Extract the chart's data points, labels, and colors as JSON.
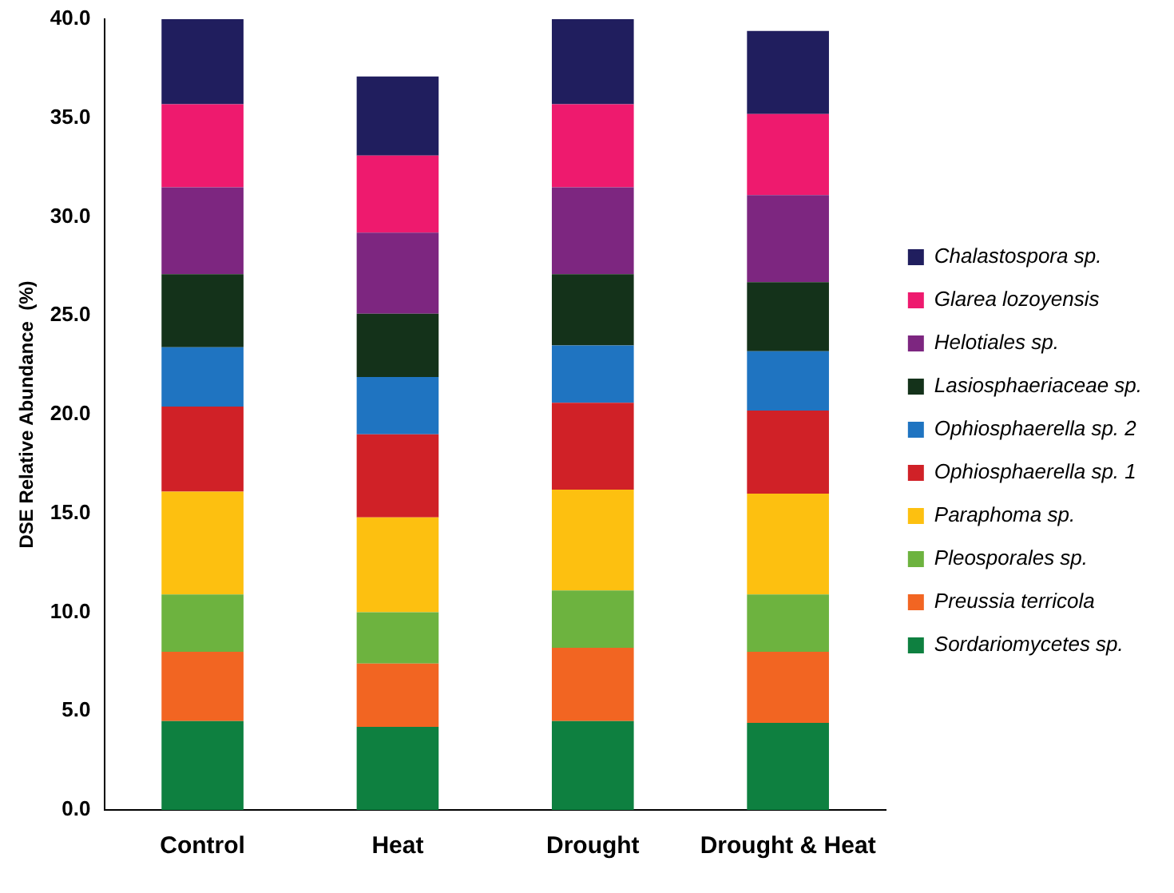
{
  "chart_data": {
    "type": "bar",
    "stacked": true,
    "ylabel": "DSE Relative Abundance  (%)",
    "categories": [
      "Control",
      "Heat",
      "Drought",
      "Drought & Heat"
    ],
    "series": [
      {
        "name": "Sordariomycetes sp.",
        "color": "#0e8040",
        "values": [
          4.5,
          4.2,
          4.5,
          4.4
        ]
      },
      {
        "name": "Preussia terricola",
        "color": "#f26522",
        "values": [
          3.5,
          3.2,
          3.7,
          3.6
        ]
      },
      {
        "name": "Pleosporales sp.",
        "color": "#6db33f",
        "values": [
          2.9,
          2.6,
          2.9,
          2.9
        ]
      },
      {
        "name": "Paraphoma sp.",
        "color": "#fdc010",
        "values": [
          5.2,
          4.8,
          5.1,
          5.1
        ]
      },
      {
        "name": "Ophiosphaerella sp. 1",
        "color": "#d02127",
        "values": [
          4.3,
          4.2,
          4.4,
          4.2
        ]
      },
      {
        "name": "Ophiosphaerella sp. 2",
        "color": "#1f74c1",
        "values": [
          3.0,
          2.9,
          2.9,
          3.0
        ]
      },
      {
        "name": "Lasiosphaeriaceae sp.",
        "color": "#14321a",
        "values": [
          3.7,
          3.2,
          3.6,
          3.5
        ]
      },
      {
        "name": "Helotiales sp.",
        "color": "#7d2680",
        "values": [
          4.4,
          4.1,
          4.4,
          4.4
        ]
      },
      {
        "name": "Glarea lozoyensis",
        "color": "#ee1a6e",
        "values": [
          4.2,
          3.9,
          4.2,
          4.1
        ]
      },
      {
        "name": "Chalastospora sp.",
        "color": "#201e5e",
        "values": [
          4.3,
          4.0,
          4.3,
          4.2
        ]
      }
    ],
    "ylim": [
      0,
      40
    ],
    "yticks": [
      {
        "value": 0,
        "label": "0.0"
      },
      {
        "value": 5,
        "label": "5.0"
      },
      {
        "value": 10,
        "label": "10.0"
      },
      {
        "value": 15,
        "label": "15.0"
      },
      {
        "value": 20,
        "label": "20.0"
      },
      {
        "value": 25,
        "label": "25.0"
      },
      {
        "value": 30,
        "label": "30.0"
      },
      {
        "value": 35,
        "label": "35.0"
      },
      {
        "value": 40,
        "label": "40.0"
      }
    ],
    "grid": false,
    "legend": "right"
  }
}
